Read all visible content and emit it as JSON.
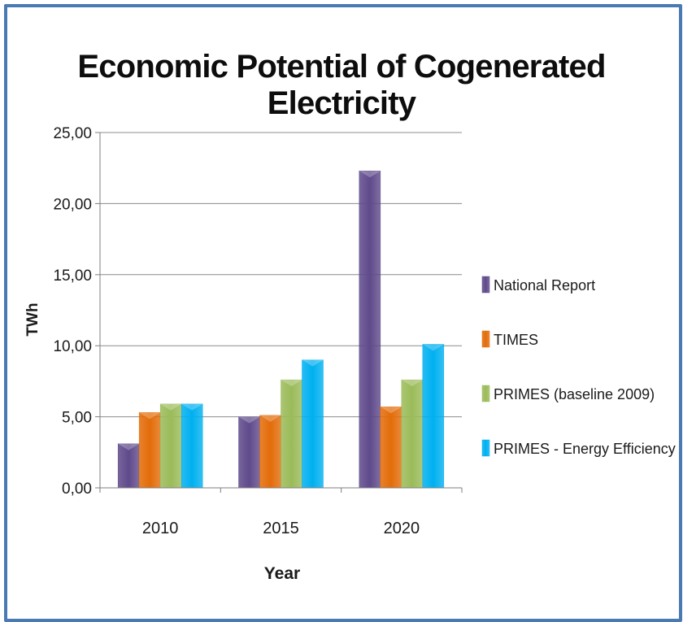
{
  "chart_data": {
    "type": "bar",
    "title": "Economic Potential of Cogenerated Electricity",
    "xlabel": "Year",
    "ylabel": "TWh",
    "categories": [
      "2010",
      "2015",
      "2020"
    ],
    "ylim": [
      0,
      25
    ],
    "yticks": [
      "0,00",
      "5,00",
      "10,00",
      "15,00",
      "20,00",
      "25,00"
    ],
    "grid": true,
    "legend_position": "right",
    "series": [
      {
        "name": "National Report",
        "color": "#5f4a8b",
        "values": [
          3.1,
          5.0,
          22.3
        ]
      },
      {
        "name": "TIMES",
        "color": "#e36c09",
        "values": [
          5.3,
          5.1,
          5.7
        ]
      },
      {
        "name": "PRIMES (baseline 2009)",
        "color": "#9bbb59",
        "values": [
          5.9,
          7.6,
          7.6
        ]
      },
      {
        "name": "PRIMES - Energy Efficiency",
        "color": "#00b0f0",
        "values": [
          5.9,
          9.0,
          10.1
        ]
      }
    ]
  }
}
